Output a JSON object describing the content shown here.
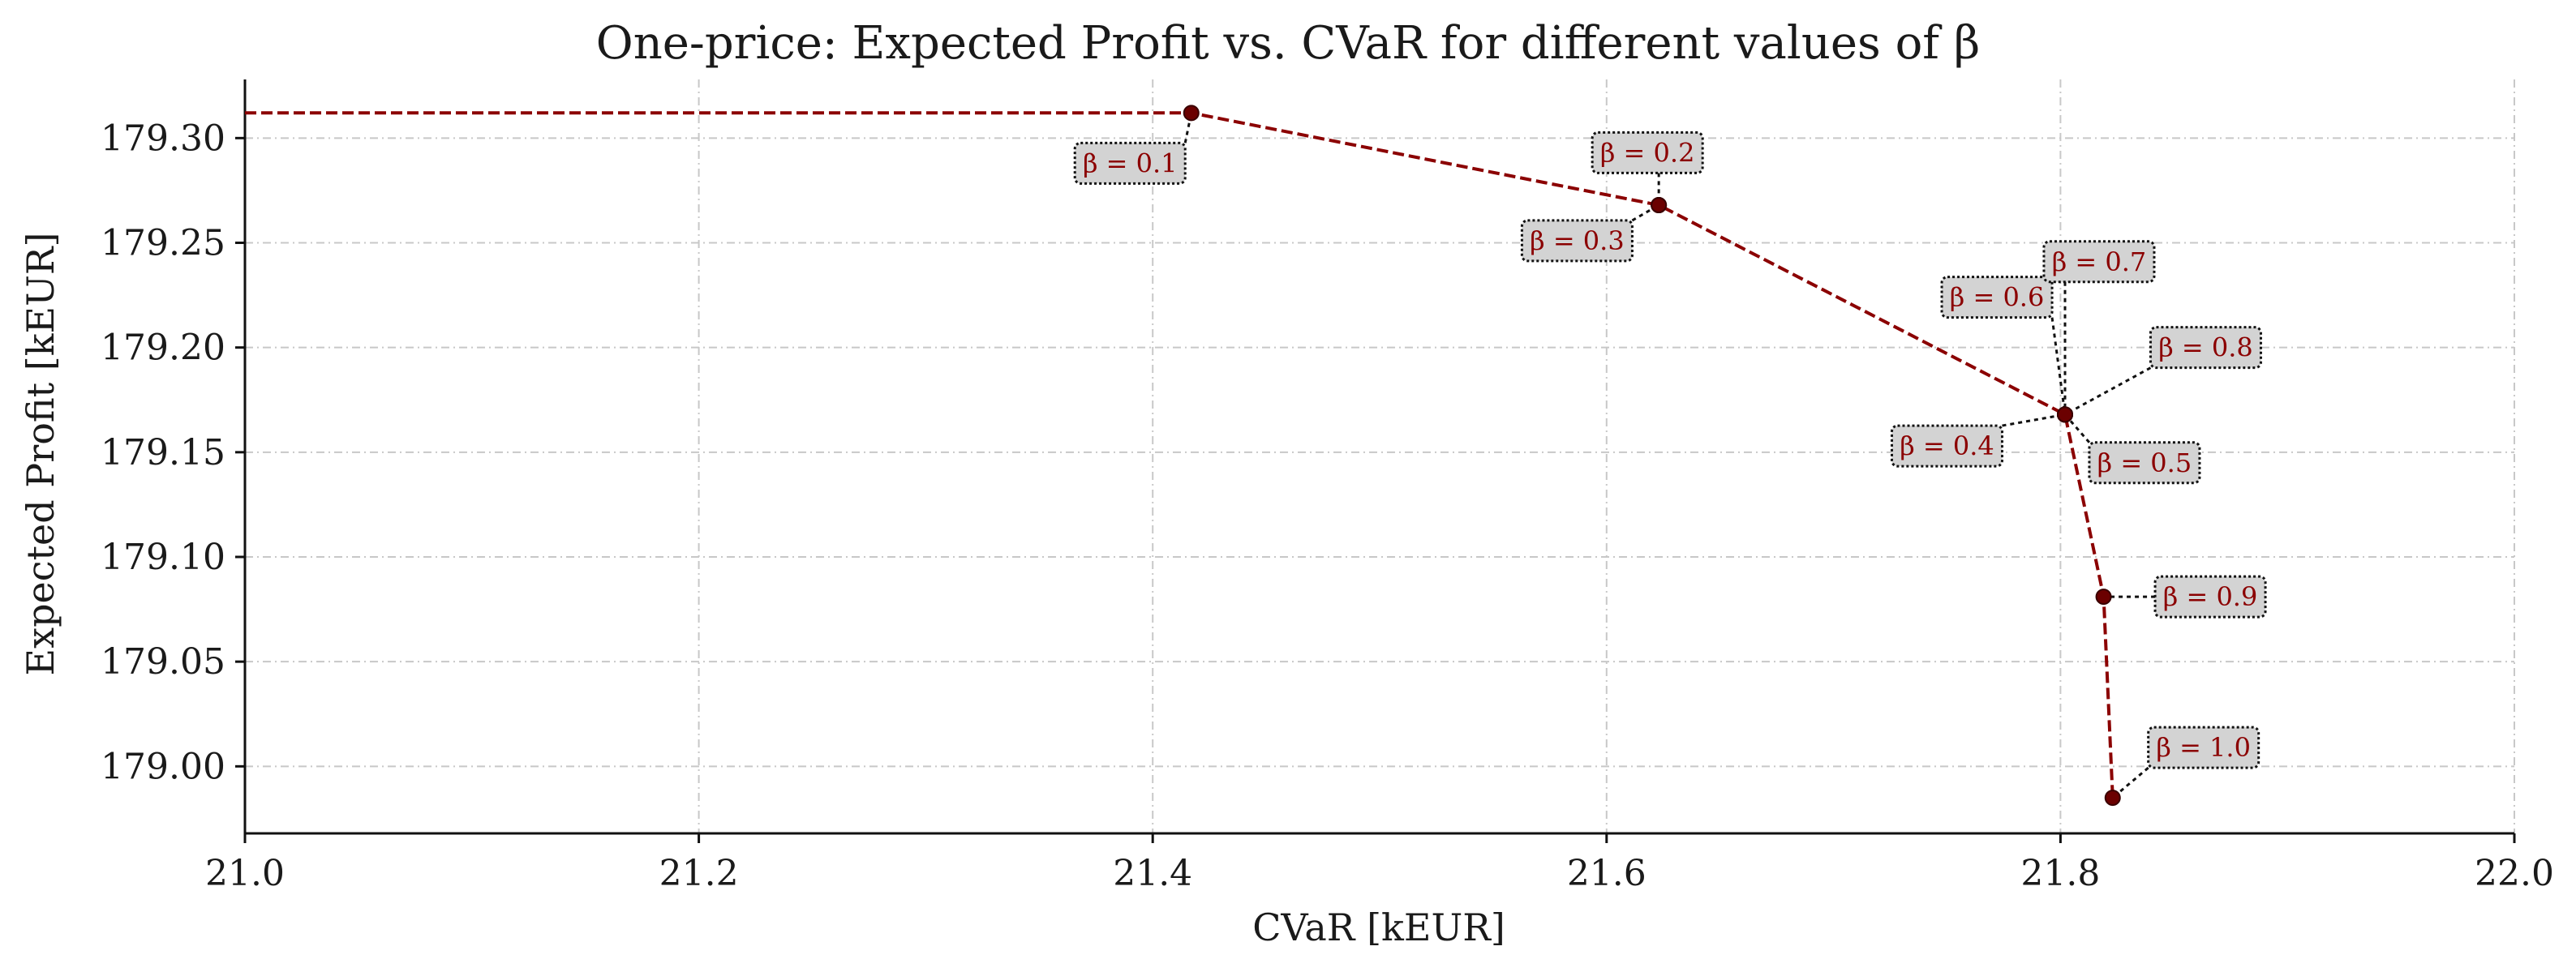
{
  "chart_data": {
    "type": "line",
    "title": "One-price: Expected Profit vs. CVaR for different values of β",
    "xlabel": "CVaR [kEUR]",
    "ylabel": "Expected Profit [kEUR]",
    "xlim": [
      21.0,
      22.0
    ],
    "ylim": [
      178.968,
      179.328
    ],
    "xticks": [
      21.0,
      21.2,
      21.4,
      21.6,
      21.8,
      22.0
    ],
    "xtick_labels": [
      "21.0",
      "21.2",
      "21.4",
      "21.6",
      "21.8",
      "22.0"
    ],
    "yticks": [
      179.0,
      179.05,
      179.1,
      179.15,
      179.2,
      179.25,
      179.3
    ],
    "ytick_labels": [
      "179.00",
      "179.05",
      "179.10",
      "179.15",
      "179.20",
      "179.25",
      "179.30"
    ],
    "grid": true,
    "line_color": "#8b0000",
    "marker_color": "#6b0000",
    "line_start": {
      "x": 21.0,
      "y": 179.312
    },
    "points": [
      {
        "beta": "β = 0.1",
        "x": 21.417,
        "y": 179.312
      },
      {
        "beta": "β = 0.2",
        "x": 21.623,
        "y": 179.268
      },
      {
        "beta": "β = 0.3",
        "x": 21.623,
        "y": 179.268
      },
      {
        "beta": "β = 0.4",
        "x": 21.802,
        "y": 179.168
      },
      {
        "beta": "β = 0.5",
        "x": 21.802,
        "y": 179.168
      },
      {
        "beta": "β = 0.6",
        "x": 21.802,
        "y": 179.168
      },
      {
        "beta": "β = 0.7",
        "x": 21.802,
        "y": 179.168
      },
      {
        "beta": "β = 0.8",
        "x": 21.802,
        "y": 179.168
      },
      {
        "beta": "β = 0.9",
        "x": 21.819,
        "y": 179.081
      },
      {
        "beta": "β = 1.0",
        "x": 21.823,
        "y": 178.985
      }
    ],
    "annotations": [
      {
        "text": "β = 0.1",
        "x": 21.39,
        "y": 179.288
      },
      {
        "text": "β = 0.2",
        "x": 21.618,
        "y": 179.293
      },
      {
        "text": "β = 0.3",
        "x": 21.587,
        "y": 179.251
      },
      {
        "text": "β = 0.4",
        "x": 21.75,
        "y": 179.153
      },
      {
        "text": "β = 0.5",
        "x": 21.837,
        "y": 179.145
      },
      {
        "text": "β = 0.6",
        "x": 21.772,
        "y": 179.224
      },
      {
        "text": "β = 0.7",
        "x": 21.817,
        "y": 179.241
      },
      {
        "text": "β = 0.8",
        "x": 21.864,
        "y": 179.2
      },
      {
        "text": "β = 0.9",
        "x": 21.866,
        "y": 179.081
      },
      {
        "text": "β = 1.0",
        "x": 21.863,
        "y": 179.009
      }
    ]
  }
}
